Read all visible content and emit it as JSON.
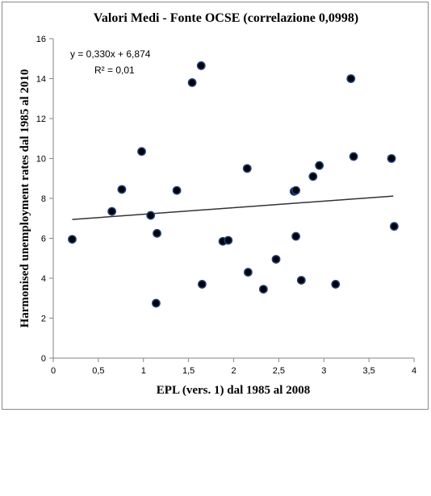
{
  "chart_data": {
    "type": "scatter",
    "title": "Valori Medi - Fonte OCSE  (correlazione 0,0998)",
    "xlabel": "EPL (vers. 1) dal 1985 al 2008",
    "ylabel": "Harmonised unemployment rates dal 1985 al 2010",
    "xlim": [
      0,
      4
    ],
    "ylim": [
      0,
      16
    ],
    "xticks": [
      0,
      0.5,
      1,
      1.5,
      2,
      2.5,
      3,
      3.5,
      4
    ],
    "xtick_labels": [
      "0",
      "0,5",
      "1",
      "1,5",
      "2",
      "2,5",
      "3",
      "3,5",
      "4"
    ],
    "yticks": [
      0,
      2,
      4,
      6,
      8,
      10,
      12,
      14,
      16
    ],
    "ytick_labels": [
      "0",
      "2",
      "4",
      "6",
      "8",
      "10",
      "12",
      "14",
      "16"
    ],
    "grid": false,
    "marker_color": "#000000",
    "marker_edge_color": "#1f3f7a",
    "trendline": {
      "type": "linear",
      "slope": 0.33,
      "intercept": 6.874,
      "x_range": [
        0.21,
        3.77
      ],
      "equation_text": "y = 0,330x + 6,874",
      "r2_text": "R² = 0,01",
      "color": "#333333"
    },
    "points": [
      {
        "x": 0.21,
        "y": 5.95
      },
      {
        "x": 0.65,
        "y": 7.35
      },
      {
        "x": 0.76,
        "y": 8.45
      },
      {
        "x": 0.98,
        "y": 10.35
      },
      {
        "x": 1.08,
        "y": 7.15
      },
      {
        "x": 1.15,
        "y": 6.25
      },
      {
        "x": 1.14,
        "y": 2.75
      },
      {
        "x": 1.37,
        "y": 8.4
      },
      {
        "x": 1.54,
        "y": 13.8
      },
      {
        "x": 1.64,
        "y": 14.65
      },
      {
        "x": 1.65,
        "y": 3.7
      },
      {
        "x": 1.88,
        "y": 5.85
      },
      {
        "x": 1.94,
        "y": 5.9
      },
      {
        "x": 2.15,
        "y": 9.5
      },
      {
        "x": 2.16,
        "y": 4.3
      },
      {
        "x": 2.33,
        "y": 3.45
      },
      {
        "x": 2.47,
        "y": 4.95
      },
      {
        "x": 2.67,
        "y": 8.35
      },
      {
        "x": 2.69,
        "y": 8.4
      },
      {
        "x": 2.69,
        "y": 6.1
      },
      {
        "x": 2.75,
        "y": 3.9
      },
      {
        "x": 2.88,
        "y": 9.1
      },
      {
        "x": 2.95,
        "y": 9.65
      },
      {
        "x": 3.13,
        "y": 3.7
      },
      {
        "x": 3.3,
        "y": 14.0
      },
      {
        "x": 3.33,
        "y": 10.1
      },
      {
        "x": 3.75,
        "y": 10.0
      },
      {
        "x": 3.78,
        "y": 6.6
      }
    ]
  }
}
